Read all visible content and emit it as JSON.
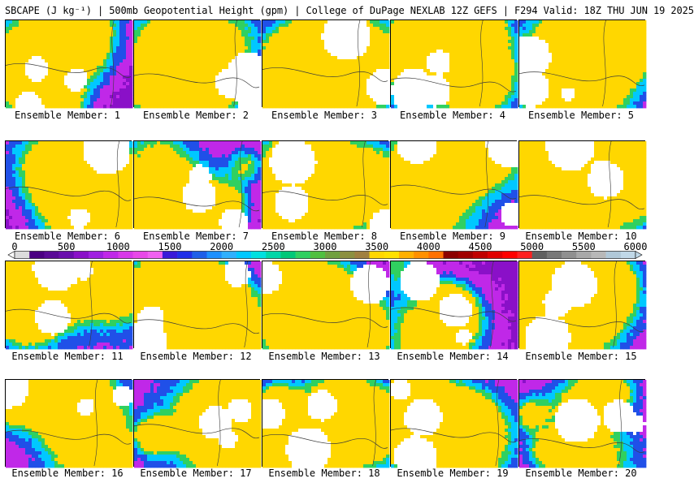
{
  "title": "SBCAPE (J kg⁻¹) | 500mb Geopotential Height (gpm) | College of DuPage NEXLAB 12Z GEFS | F294 Valid: 18Z THU JUN 19 2025",
  "panels": [
    {
      "label": "Ensemble Member: 1"
    },
    {
      "label": "Ensemble Member: 2"
    },
    {
      "label": "Ensemble Member: 3"
    },
    {
      "label": "Ensemble Member: 4"
    },
    {
      "label": "Ensemble Member: 5"
    },
    {
      "label": "Ensemble Member: 6"
    },
    {
      "label": "Ensemble Member: 7"
    },
    {
      "label": "Ensemble Member: 8"
    },
    {
      "label": "Ensemble Member: 9"
    },
    {
      "label": "Ensemble Member: 10"
    },
    {
      "label": "Ensemble Member: 11"
    },
    {
      "label": "Ensemble Member: 12"
    },
    {
      "label": "Ensemble Member: 13"
    },
    {
      "label": "Ensemble Member: 14"
    },
    {
      "label": "Ensemble Member: 15"
    },
    {
      "label": "Ensemble Member: 16"
    },
    {
      "label": "Ensemble Member: 17"
    },
    {
      "label": "Ensemble Member: 18"
    },
    {
      "label": "Ensemble Member: 19"
    },
    {
      "label": "Ensemble Member: 20"
    }
  ],
  "colorbar": {
    "ticks": [
      "0",
      "500",
      "1000",
      "1500",
      "2000",
      "2500",
      "3000",
      "3500",
      "4000",
      "4500",
      "5000",
      "5500",
      "6000"
    ],
    "bins": [
      "#dcdcdc",
      "#4b0082",
      "#5a0a96",
      "#6a0dad",
      "#8a10c8",
      "#a020e0",
      "#c028e8",
      "#d838e8",
      "#e848e8",
      "#f060f0",
      "#3a1ad8",
      "#2030e8",
      "#1f5fe8",
      "#1e90ff",
      "#30b0ff",
      "#00c8ff",
      "#00e0e0",
      "#00d6a8",
      "#00c878",
      "#30d060",
      "#50c040",
      "#70a040",
      "#8c9040",
      "#a08040",
      "#ffd700",
      "#ffe000",
      "#ffb000",
      "#ff9000",
      "#ff7000",
      "#8b0000",
      "#a00000",
      "#c00000",
      "#e00000",
      "#ff0000",
      "#ff2020",
      "#606060",
      "#787878",
      "#909090",
      "#a8a8a8",
      "#b8b8b8",
      "#b0c8d8",
      "#c0d8e8"
    ]
  },
  "map_colors": {
    "no_cape": "#ffffff",
    "very_low": "#8a10c8",
    "low": "#c028e8",
    "moderate": "#2050e8",
    "high": "#00c8ff",
    "very_high": "#30d060",
    "extreme": "#ffd700",
    "outline": "#3a3a3a"
  }
}
